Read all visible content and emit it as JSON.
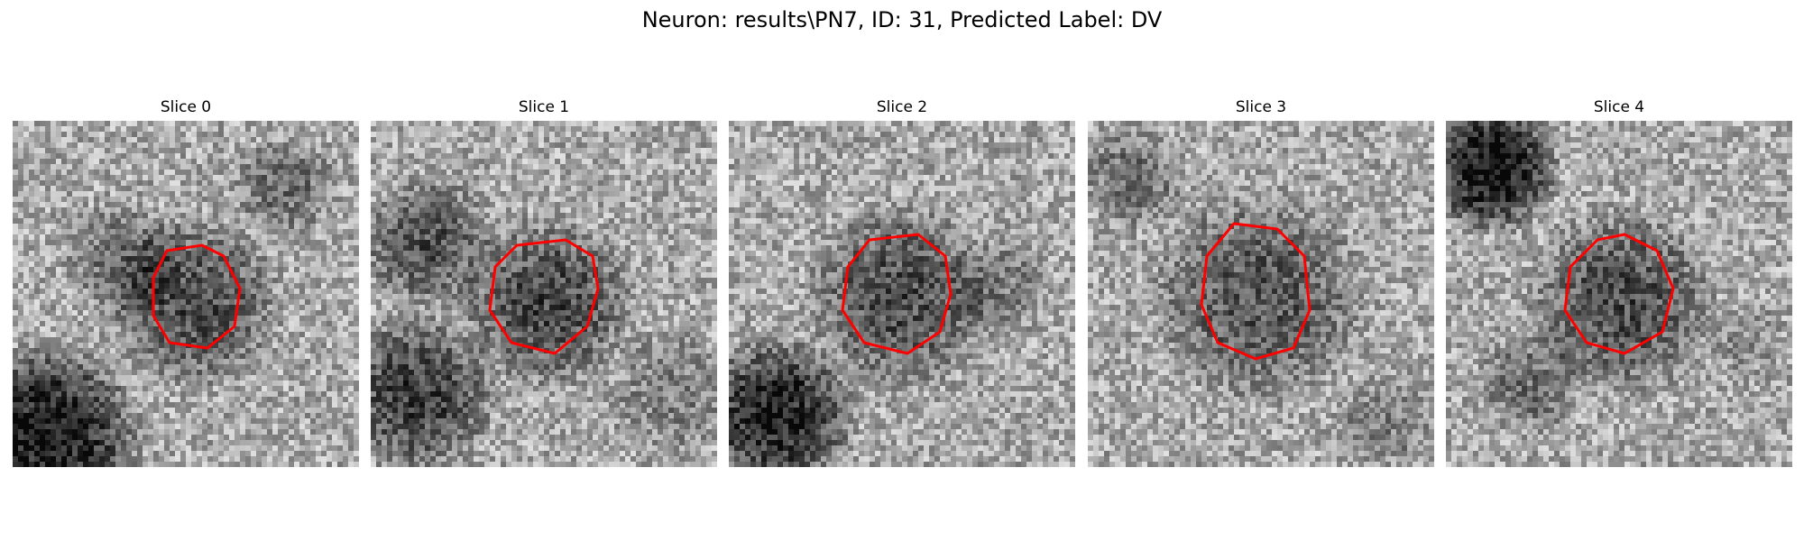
{
  "figure": {
    "title": "Neuron: results\\PN7, ID: 31, Predicted Label: DV"
  },
  "style": {
    "contour_color": "#ff0000",
    "background": "#ffffff"
  },
  "panels": [
    {
      "title": "Slice 0",
      "contour": [
        [
          28.5,
          24
        ],
        [
          26,
          29
        ],
        [
          26,
          36
        ],
        [
          29,
          41
        ],
        [
          36,
          42
        ],
        [
          41,
          38
        ],
        [
          42,
          31
        ],
        [
          39,
          25
        ],
        [
          35,
          23
        ]
      ]
    },
    {
      "title": "Slice 1",
      "contour": [
        [
          27,
          23
        ],
        [
          23,
          27
        ],
        [
          22,
          35
        ],
        [
          26,
          41
        ],
        [
          34,
          43
        ],
        [
          40,
          38
        ],
        [
          42,
          31
        ],
        [
          41,
          25
        ],
        [
          36,
          22
        ]
      ]
    },
    {
      "title": "Slice 2",
      "contour": [
        [
          26,
          22
        ],
        [
          22,
          27
        ],
        [
          21,
          35
        ],
        [
          25,
          41
        ],
        [
          33,
          43
        ],
        [
          39,
          39
        ],
        [
          41,
          32
        ],
        [
          40,
          25
        ],
        [
          35,
          21
        ]
      ]
    },
    {
      "title": "Slice 3",
      "contour": [
        [
          27,
          19
        ],
        [
          22,
          25
        ],
        [
          21,
          34
        ],
        [
          24,
          41
        ],
        [
          31,
          44
        ],
        [
          38,
          42
        ],
        [
          41,
          35
        ],
        [
          40,
          25
        ],
        [
          35,
          20
        ]
      ]
    },
    {
      "title": "Slice 4",
      "contour": [
        [
          28,
          22
        ],
        [
          23,
          27
        ],
        [
          22,
          35
        ],
        [
          26,
          41
        ],
        [
          33,
          43
        ],
        [
          40,
          39
        ],
        [
          42,
          31
        ],
        [
          39,
          24
        ],
        [
          33,
          21
        ]
      ]
    }
  ]
}
